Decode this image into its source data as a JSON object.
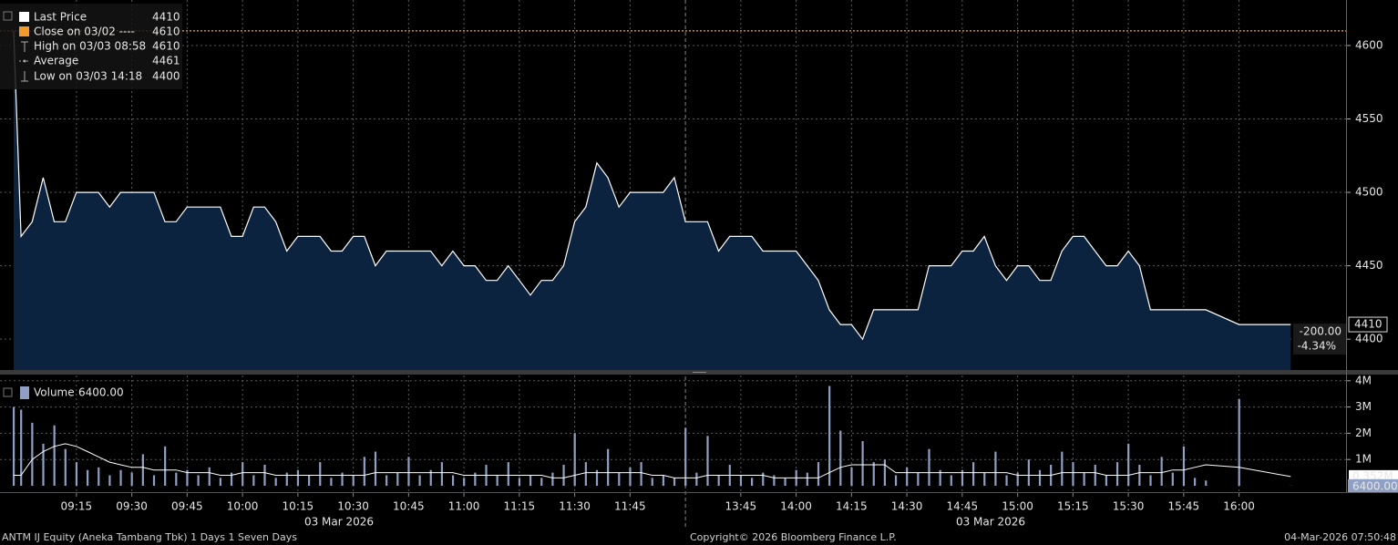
{
  "chart_data": [
    {
      "type": "area",
      "x": [
        "08:58",
        "09:00",
        "09:03",
        "09:06",
        "09:09",
        "09:12",
        "09:15",
        "09:18",
        "09:21",
        "09:24",
        "09:27",
        "09:30",
        "09:33",
        "09:36",
        "09:39",
        "09:42",
        "09:45",
        "09:48",
        "09:51",
        "09:54",
        "09:57",
        "10:00",
        "10:03",
        "10:06",
        "10:09",
        "10:12",
        "10:15",
        "10:18",
        "10:21",
        "10:24",
        "10:27",
        "10:30",
        "10:33",
        "10:36",
        "10:39",
        "10:42",
        "10:45",
        "10:48",
        "10:51",
        "10:54",
        "10:57",
        "11:00",
        "11:03",
        "11:06",
        "11:09",
        "11:12",
        "11:15",
        "11:18",
        "11:21",
        "11:24",
        "11:27",
        "11:30",
        "11:33",
        "11:36",
        "11:39",
        "11:42",
        "11:45",
        "11:48",
        "11:51",
        "11:54",
        "11:57",
        "12:00",
        "13:30",
        "13:33",
        "13:36",
        "13:39",
        "13:42",
        "13:45",
        "13:48",
        "13:51",
        "13:54",
        "13:57",
        "14:00",
        "14:03",
        "14:06",
        "14:09",
        "14:12",
        "14:15",
        "14:18",
        "14:21",
        "14:24",
        "14:27",
        "14:30",
        "14:33",
        "14:36",
        "14:39",
        "14:42",
        "14:45",
        "14:48",
        "14:51",
        "14:54",
        "14:57",
        "15:00",
        "15:03",
        "15:06",
        "15:09",
        "15:12",
        "15:15",
        "15:18",
        "15:21",
        "15:24",
        "15:27",
        "15:30",
        "15:33",
        "15:36",
        "15:39",
        "15:42",
        "15:45",
        "15:48",
        "15:51",
        "16:00",
        "16:14"
      ],
      "series": [
        {
          "name": "Last Price",
          "color": "#ffffff",
          "fill": "#0c2340",
          "values": [
            4610,
            4470,
            4480,
            4510,
            4480,
            4480,
            4500,
            4500,
            4500,
            4490,
            4500,
            4500,
            4500,
            4500,
            4480,
            4480,
            4490,
            4490,
            4490,
            4490,
            4470,
            4470,
            4490,
            4490,
            4480,
            4460,
            4470,
            4470,
            4470,
            4460,
            4460,
            4470,
            4470,
            4450,
            4460,
            4460,
            4460,
            4460,
            4460,
            4450,
            4460,
            4450,
            4450,
            4440,
            4440,
            4450,
            4440,
            4430,
            4440,
            4440,
            4450,
            4480,
            4490,
            4520,
            4510,
            4490,
            4500,
            4500,
            4500,
            4500,
            4510,
            4480,
            4480,
            4480,
            4480,
            4460,
            4470,
            4470,
            4470,
            4460,
            4460,
            4460,
            4460,
            4450,
            4440,
            4420,
            4410,
            4410,
            4400,
            4420,
            4420,
            4420,
            4420,
            4420,
            4450,
            4450,
            4450,
            4460,
            4460,
            4470,
            4450,
            4440,
            4450,
            4450,
            4440,
            4440,
            4460,
            4470,
            4470,
            4460,
            4450,
            4450,
            4460,
            4450,
            4420,
            4420,
            4420,
            4420,
            4420,
            4420,
            4410,
            4410
          ]
        }
      ],
      "ylim": [
        4379,
        4631
      ],
      "yticks": [
        4400,
        4450,
        4500,
        4550,
        4600
      ],
      "xticks": [
        "09:15",
        "09:30",
        "09:45",
        "10:00",
        "10:15",
        "10:30",
        "10:45",
        "11:00",
        "11:15",
        "11:30",
        "11:45",
        "13:45",
        "14:00",
        "14:15",
        "14:30",
        "14:45",
        "15:00",
        "15:15",
        "15:30",
        "15:45",
        "16:00"
      ],
      "x_date_labels": [
        "03 Mar 2026",
        "03 Mar 2026"
      ],
      "grid": true,
      "close_line": {
        "value": 4610,
        "color": "#f39a2b"
      },
      "last_tag": 4410,
      "change": "-200.00",
      "change_pct": "-4.34%",
      "legend": [
        {
          "label": "Last Price",
          "value": 4410
        },
        {
          "label": "Close on 03/02 ----",
          "value": 4610
        },
        {
          "label": "High on 03/03 08:58",
          "value": 4610
        },
        {
          "label": "Average",
          "value": 4461
        },
        {
          "label": "Low on 03/03 14:18",
          "value": 4400
        }
      ]
    },
    {
      "type": "bar",
      "series": [
        {
          "name": "Volume",
          "color": "#8fa0c4",
          "values": [
            3.0,
            2.9,
            2.4,
            1.6,
            2.3,
            1.4,
            0.9,
            0.6,
            0.7,
            0.4,
            0.6,
            0.5,
            1.2,
            0.4,
            1.5,
            0.5,
            0.6,
            0.4,
            0.7,
            0.3,
            0.5,
            0.9,
            0.4,
            0.8,
            0.3,
            0.5,
            0.6,
            0.4,
            0.9,
            0.3,
            0.5,
            0.4,
            1.1,
            1.3,
            0.4,
            0.5,
            1.1,
            0.4,
            0.6,
            0.9,
            0.4,
            0.3,
            0.5,
            0.8,
            0.4,
            0.9,
            0.3,
            0.4,
            0.3,
            0.5,
            0.8,
            2.0,
            0.9,
            0.6,
            1.4,
            0.5,
            0.7,
            0.9,
            0.3,
            0.4,
            0.3,
            0.2,
            2.2,
            0.5,
            1.9,
            0.4,
            0.8,
            0.4,
            0.3,
            0.5,
            0.4,
            0.3,
            0.6,
            0.5,
            0.9,
            3.8,
            2.1,
            0.7,
            1.7,
            0.9,
            1.0,
            0.4,
            0.7,
            0.5,
            1.4,
            0.6,
            0.4,
            0.6,
            0.9,
            0.5,
            1.3,
            0.4,
            0.5,
            1.0,
            0.6,
            0.8,
            1.3,
            0.9,
            0.5,
            0.8,
            0.4,
            0.9,
            1.6,
            0.8,
            0.4,
            1.1,
            0.5,
            1.5,
            0.3,
            0.2,
            3.3,
            0.0064
          ]
        },
        {
          "color": "#ffffff",
          "values": [
            0.4,
            0.4,
            1.0,
            1.3,
            1.5,
            1.6,
            1.5,
            1.3,
            1.1,
            0.9,
            0.8,
            0.7,
            0.7,
            0.6,
            0.6,
            0.6,
            0.5,
            0.5,
            0.5,
            0.4,
            0.4,
            0.5,
            0.5,
            0.5,
            0.4,
            0.4,
            0.4,
            0.4,
            0.4,
            0.4,
            0.4,
            0.4,
            0.4,
            0.5,
            0.5,
            0.5,
            0.5,
            0.5,
            0.5,
            0.5,
            0.5,
            0.4,
            0.4,
            0.4,
            0.4,
            0.4,
            0.4,
            0.4,
            0.4,
            0.3,
            0.3,
            0.4,
            0.5,
            0.5,
            0.5,
            0.5,
            0.5,
            0.5,
            0.4,
            0.4,
            0.3,
            0.3,
            0.3,
            0.3,
            0.4,
            0.4,
            0.4,
            0.4,
            0.4,
            0.4,
            0.3,
            0.3,
            0.3,
            0.3,
            0.3,
            0.5,
            0.7,
            0.8,
            0.8,
            0.8,
            0.8,
            0.5,
            0.5,
            0.5,
            0.5,
            0.5,
            0.5,
            0.5,
            0.5,
            0.5,
            0.5,
            0.5,
            0.4,
            0.4,
            0.4,
            0.4,
            0.5,
            0.5,
            0.5,
            0.5,
            0.4,
            0.4,
            0.4,
            0.5,
            0.5,
            0.5,
            0.6,
            0.6,
            0.7,
            0.8,
            0.7,
            0.352
          ]
        }
      ],
      "ylim": [
        0,
        4.2
      ],
      "yticks": [
        {
          "value": 1,
          "label": "1M"
        },
        {
          "value": 2,
          "label": "2M"
        },
        {
          "value": 3,
          "label": "3M"
        },
        {
          "value": 4,
          "label": "4M"
        }
      ],
      "grid": true,
      "legend": {
        "label": "Volume",
        "value": "6400.00"
      },
      "last_tag": {
        "value": 0.0064,
        "label": "6400.00"
      },
      "avg_tag": {
        "value": 0.352,
        "label": "0.352M"
      }
    }
  ],
  "footer": {
    "left": "ANTM IJ Equity (Aneka Tambang Tbk) 1 Days 1 Seven Days",
    "center": "Copyright© 2026 Bloomberg Finance L.P.",
    "right": "04-Mar-2026 07:50:48"
  }
}
